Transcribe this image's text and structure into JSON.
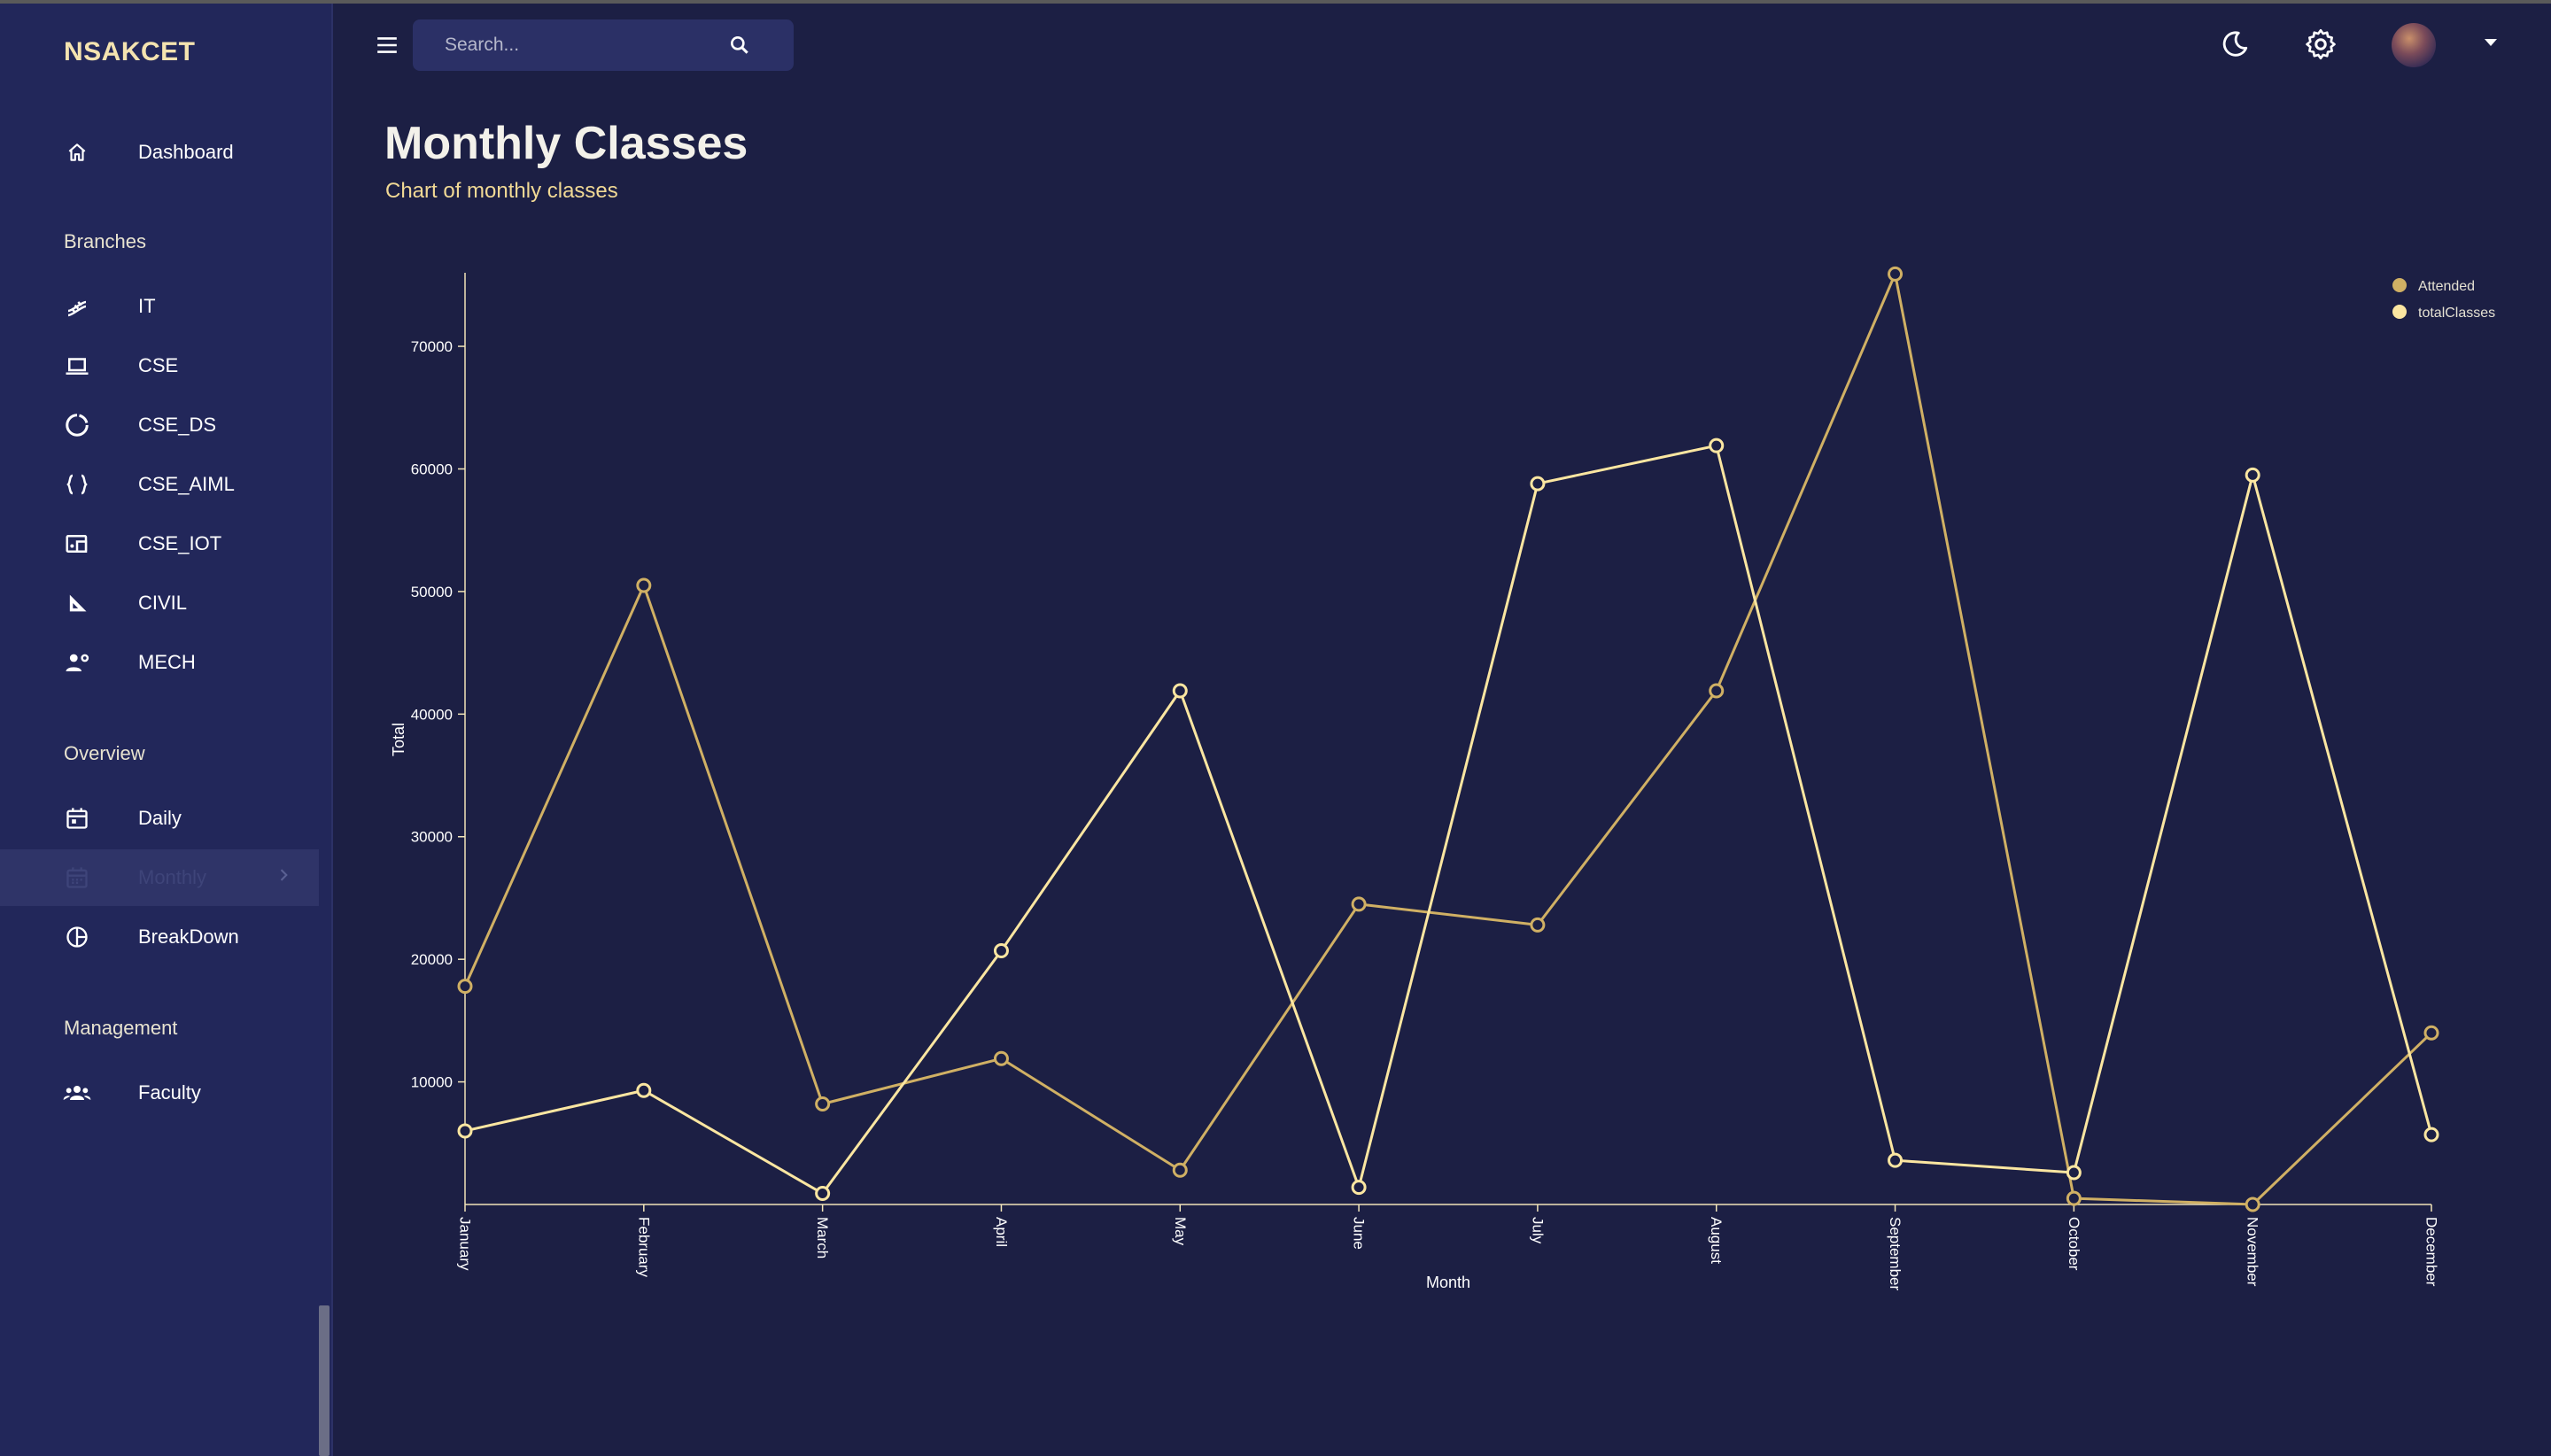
{
  "app": {
    "brand": "NSAKCET"
  },
  "colors": {
    "sidebar": "#22275a",
    "page": "#1c1f44",
    "accent": "#f1d995",
    "attended": "#d0b064",
    "total_classes": "#fbe6a1"
  },
  "sidebar": {
    "dashboard": {
      "label": "Dashboard",
      "icon": "home-icon"
    },
    "sections": {
      "branches": "Branches",
      "overview": "Overview",
      "management": "Management"
    },
    "branches": [
      {
        "label": "IT",
        "icon": "dna-icon"
      },
      {
        "label": "CSE",
        "icon": "laptop-icon"
      },
      {
        "label": "CSE_DS",
        "icon": "donut-icon"
      },
      {
        "label": "CSE_AIML",
        "icon": "braces-icon"
      },
      {
        "label": "CSE_IOT",
        "icon": "devices-icon"
      },
      {
        "label": "CIVIL",
        "icon": "set-square-icon"
      },
      {
        "label": "MECH",
        "icon": "engineer-icon"
      }
    ],
    "overview": [
      {
        "label": "Daily",
        "icon": "calendar-icon"
      },
      {
        "label": "Monthly",
        "icon": "calendar-month-icon",
        "active": true
      },
      {
        "label": "BreakDown",
        "icon": "pie-icon"
      }
    ],
    "management": [
      {
        "label": "Faculty",
        "icon": "group-icon"
      }
    ]
  },
  "topbar": {
    "search_placeholder": "Search...",
    "icons": [
      "menu-icon",
      "search-icon",
      "moon-icon",
      "gear-icon",
      "avatar",
      "caret-down-icon"
    ]
  },
  "page": {
    "title": "Monthly Classes",
    "subtitle": "Chart of monthly classes"
  },
  "chart_data": {
    "type": "line",
    "x": [
      "January",
      "February",
      "March",
      "April",
      "May",
      "June",
      "July",
      "August",
      "September",
      "October",
      "November",
      "December"
    ],
    "xlabel": "Month",
    "ylabel": "Total",
    "ylim": [
      0,
      76000
    ],
    "yticks": [
      10000,
      20000,
      30000,
      40000,
      50000,
      60000,
      70000
    ],
    "grid": false,
    "legend_position": "top-right",
    "series": [
      {
        "name": "Attended",
        "values": [
          17800,
          50500,
          8200,
          11900,
          2800,
          24500,
          22800,
          41900,
          75900,
          500,
          0,
          14000
        ]
      },
      {
        "name": "totalClasses",
        "values": [
          6000,
          9300,
          900,
          20700,
          41900,
          1400,
          58800,
          61900,
          3600,
          2600,
          59500,
          5700
        ]
      }
    ]
  }
}
